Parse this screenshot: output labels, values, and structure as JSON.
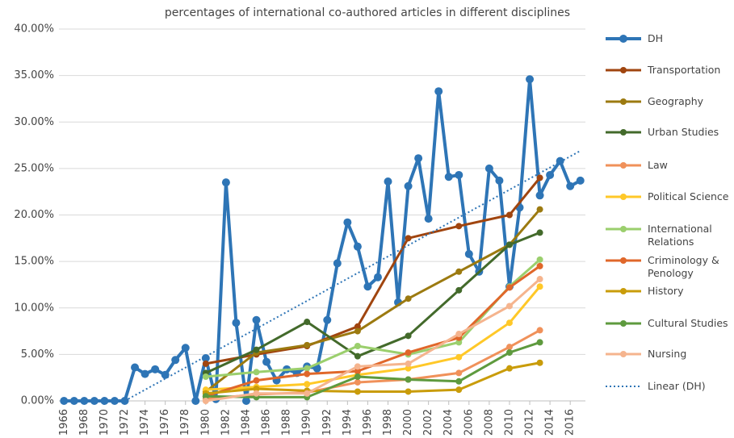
{
  "chart_data": {
    "type": "line",
    "title": "percentages of international co-authored articles in different disciplines",
    "xlim": [
      1965.5,
      2017.5
    ],
    "xticks": [
      1966,
      1968,
      1970,
      1972,
      1974,
      1976,
      1978,
      1980,
      1982,
      1984,
      1986,
      1988,
      1990,
      1992,
      1994,
      1996,
      1998,
      2000,
      2002,
      2004,
      2006,
      2008,
      2010,
      2012,
      2014,
      2016
    ],
    "ylim": [
      0,
      40
    ],
    "yticks": [
      {
        "value": 0,
        "label": "0.00%"
      },
      {
        "value": 5,
        "label": "5.00%"
      },
      {
        "value": 10,
        "label": "10.00%"
      },
      {
        "value": 15,
        "label": "15.00%"
      },
      {
        "value": 20,
        "label": "20.00%"
      },
      {
        "value": 25,
        "label": "25.00%"
      },
      {
        "value": 30,
        "label": "30.00%"
      },
      {
        "value": 35,
        "label": "35.00%"
      },
      {
        "value": 40,
        "label": "40.00%"
      }
    ],
    "grid": true,
    "legend": "right",
    "series": [
      {
        "name": "DH",
        "color": "#2e75b6",
        "width": 4,
        "marker": 5,
        "x": [
          1966,
          1967,
          1968,
          1969,
          1970,
          1971,
          1972,
          1973,
          1974,
          1975,
          1976,
          1977,
          1978,
          1979,
          1980,
          1981,
          1982,
          1983,
          1984,
          1985,
          1986,
          1987,
          1988,
          1989,
          1990,
          1991,
          1992,
          1993,
          1994,
          1995,
          1996,
          1997,
          1998,
          1999,
          2000,
          2001,
          2002,
          2003,
          2004,
          2005,
          2006,
          2007,
          2008,
          2009,
          2010,
          2011,
          2012,
          2013,
          2014,
          2015,
          2016,
          2017
        ],
        "values": [
          0,
          0,
          0,
          0,
          0,
          0,
          0,
          3.6,
          2.9,
          3.4,
          2.8,
          4.4,
          5.7,
          0,
          4.6,
          0.2,
          23.5,
          8.4,
          0,
          8.7,
          4.2,
          2.2,
          3.4,
          3.0,
          3.7,
          3.5,
          8.7,
          14.8,
          19.2,
          16.6,
          12.3,
          13.3,
          23.6,
          10.6,
          23.1,
          26.1,
          19.6,
          33.3,
          24.1,
          24.3,
          15.8,
          13.9,
          25.0,
          23.7,
          12.3,
          20.8,
          34.6,
          22.1,
          24.3,
          25.8,
          23.1,
          23.7
        ]
      },
      {
        "name": "Transportation",
        "color": "#a0450f",
        "width": 3,
        "marker": 4,
        "x": [
          1980,
          1985,
          1990,
          1995,
          2000,
          2005,
          2010,
          2013
        ],
        "values": [
          4.0,
          5.0,
          5.9,
          8.0,
          17.5,
          18.8,
          20.0,
          24.0
        ]
      },
      {
        "name": "Geography",
        "color": "#9c7a10",
        "width": 3,
        "marker": 4,
        "x": [
          1980,
          1985,
          1990,
          1995,
          2000,
          2005,
          2010,
          2013
        ],
        "values": [
          1.0,
          5.2,
          6.0,
          7.5,
          11.0,
          13.9,
          16.8,
          20.6
        ]
      },
      {
        "name": "Urban Studies",
        "color": "#436a2b",
        "width": 3,
        "marker": 4,
        "x": [
          1980,
          1985,
          1990,
          1995,
          2000,
          2005,
          2010,
          2013
        ],
        "values": [
          3.0,
          5.5,
          8.5,
          4.8,
          7.0,
          11.9,
          16.8,
          18.1
        ]
      },
      {
        "name": "Law",
        "color": "#f0915a",
        "width": 3,
        "marker": 4,
        "x": [
          1980,
          1985,
          1990,
          1995,
          2000,
          2005,
          2010,
          2013
        ],
        "values": [
          0.2,
          0.7,
          0.9,
          2.0,
          2.3,
          3.0,
          5.8,
          7.6
        ]
      },
      {
        "name": "Political Science",
        "color": "#ffc828",
        "width": 3,
        "marker": 4,
        "x": [
          1980,
          1985,
          1990,
          1995,
          2000,
          2005,
          2010,
          2013
        ],
        "values": [
          1.2,
          1.5,
          1.8,
          2.8,
          3.5,
          4.7,
          8.4,
          12.3
        ]
      },
      {
        "name": "International Relations",
        "color": "#9bcf6d",
        "width": 3,
        "marker": 4,
        "x": [
          1980,
          1985,
          1990,
          1995,
          2000,
          2005,
          2010,
          2013
        ],
        "values": [
          2.6,
          3.1,
          3.5,
          5.9,
          5.0,
          6.3,
          12.3,
          15.2
        ]
      },
      {
        "name": "Criminology & Penology",
        "color": "#e0672a",
        "width": 3,
        "marker": 4,
        "x": [
          1980,
          1985,
          1990,
          1995,
          2000,
          2005,
          2010,
          2013
        ],
        "values": [
          0.5,
          2.2,
          2.9,
          3.2,
          5.2,
          6.8,
          12.2,
          14.5
        ]
      },
      {
        "name": "History",
        "color": "#c99c0a",
        "width": 3,
        "marker": 4,
        "x": [
          1980,
          1985,
          1990,
          1995,
          2000,
          2005,
          2010,
          2013
        ],
        "values": [
          0.8,
          1.3,
          1.1,
          1.0,
          1.0,
          1.2,
          3.5,
          4.1
        ]
      },
      {
        "name": "Cultural Studies",
        "color": "#5e9a3e",
        "width": 3,
        "marker": 4,
        "x": [
          1980,
          1985,
          1990,
          1995,
          2000,
          2005,
          2010,
          2013
        ],
        "values": [
          0.5,
          0.4,
          0.4,
          2.6,
          2.3,
          2.1,
          5.2,
          6.3
        ]
      },
      {
        "name": "Nursing",
        "color": "#f5b48e",
        "width": 3,
        "marker": 4,
        "x": [
          1980,
          1985,
          1990,
          1995,
          2000,
          2005,
          2010,
          2013
        ],
        "values": [
          0,
          0.8,
          0.8,
          3.7,
          4.0,
          7.2,
          10.2,
          13.1
        ]
      },
      {
        "name": "Linear (DH)",
        "color": "#2e75b6",
        "width": 2,
        "marker": 0,
        "style": "dotted",
        "x": [
          1972,
          2017
        ],
        "values": [
          0,
          26.9
        ]
      }
    ]
  }
}
